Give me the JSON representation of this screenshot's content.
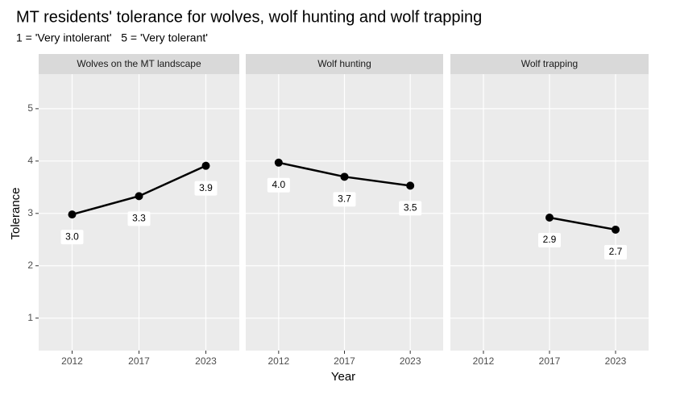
{
  "title": "MT residents' tolerance for wolves, wolf hunting and wolf trapping",
  "subtitle": "1 = 'Very intolerant'   5 = 'Very tolerant'",
  "xlabel": "Year",
  "ylabel": "Tolerance",
  "chart_data": [
    {
      "type": "line",
      "title": "Wolves on the MT landscape",
      "categories": [
        "2012",
        "2017",
        "2023"
      ],
      "values": [
        2.98,
        3.33,
        3.91
      ],
      "value_labels": [
        "3.0",
        "3.3",
        "3.9"
      ],
      "color": "#000000",
      "ylim": [
        0.38,
        5.66
      ],
      "yticks": [
        1,
        2,
        3,
        4,
        5
      ],
      "grid": true
    },
    {
      "type": "line",
      "title": "Wolf hunting",
      "categories": [
        "2012",
        "2017",
        "2023"
      ],
      "values": [
        3.97,
        3.7,
        3.53
      ],
      "value_labels": [
        "4.0",
        "3.7",
        "3.5"
      ],
      "color": "#000000",
      "ylim": [
        0.38,
        5.66
      ],
      "yticks": [
        1,
        2,
        3,
        4,
        5
      ],
      "grid": true
    },
    {
      "type": "line",
      "title": "Wolf trapping",
      "categories": [
        "2012",
        "2017",
        "2023"
      ],
      "values": [
        null,
        2.92,
        2.69
      ],
      "value_labels": [
        null,
        "2.9",
        "2.7"
      ],
      "color": "#000000",
      "ylim": [
        0.38,
        5.66
      ],
      "yticks": [
        1,
        2,
        3,
        4,
        5
      ],
      "grid": true
    }
  ]
}
